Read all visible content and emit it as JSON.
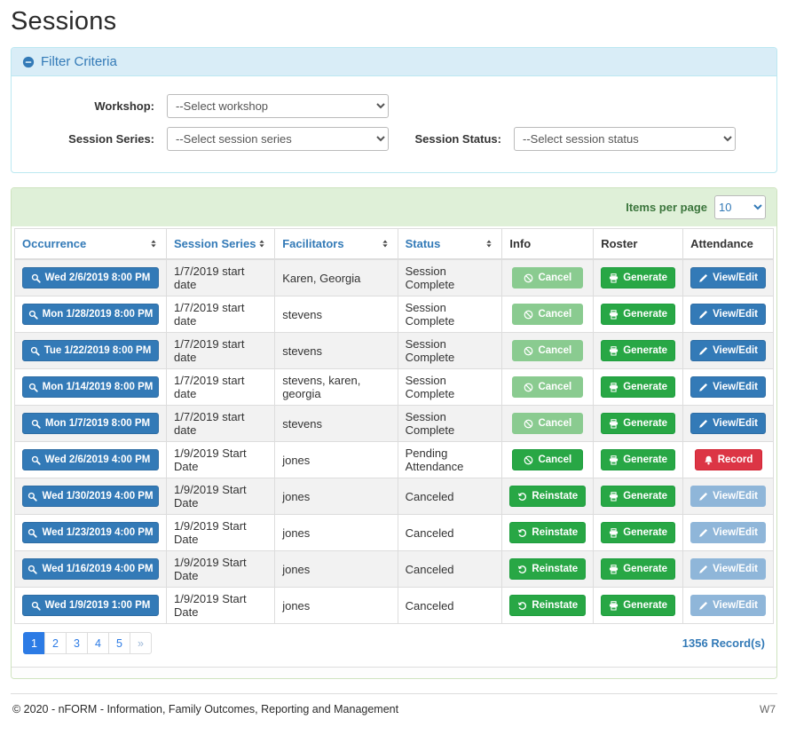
{
  "page": {
    "title": "Sessions"
  },
  "filter": {
    "title": "Filter Criteria",
    "collapse_icon": "minus-circle-icon",
    "workshop": {
      "label": "Workshop:",
      "value": "--Select workshop"
    },
    "session_series": {
      "label": "Session Series:",
      "value": "--Select session series"
    },
    "session_status": {
      "label": "Session Status:",
      "value": "--Select session status"
    }
  },
  "table": {
    "items_per_page": {
      "label": "Items per page",
      "value": "10"
    },
    "columns": [
      {
        "label": "Occurrence",
        "sortable": true
      },
      {
        "label": "Session Series",
        "sortable": true
      },
      {
        "label": "Facilitators",
        "sortable": true
      },
      {
        "label": "Status",
        "sortable": true
      },
      {
        "label": "Info",
        "sortable": false
      },
      {
        "label": "Roster",
        "sortable": false
      },
      {
        "label": "Attendance",
        "sortable": false
      }
    ],
    "rows": [
      {
        "occurrence": "Wed 2/6/2019 8:00 PM",
        "series": "1/7/2019 start date",
        "facilitators": "Karen, Georgia",
        "status": "Session Complete",
        "info": {
          "label": "Cancel",
          "icon": "ban",
          "variant": "green-muted"
        },
        "roster": {
          "label": "Generate",
          "icon": "printer",
          "variant": "green"
        },
        "attendance": {
          "label": "View/Edit",
          "icon": "pencil",
          "variant": "blue"
        }
      },
      {
        "occurrence": "Mon 1/28/2019 8:00 PM",
        "series": "1/7/2019 start date",
        "facilitators": "stevens",
        "status": "Session Complete",
        "info": {
          "label": "Cancel",
          "icon": "ban",
          "variant": "green-muted"
        },
        "roster": {
          "label": "Generate",
          "icon": "printer",
          "variant": "green"
        },
        "attendance": {
          "label": "View/Edit",
          "icon": "pencil",
          "variant": "blue"
        }
      },
      {
        "occurrence": "Tue 1/22/2019 8:00 PM",
        "series": "1/7/2019 start date",
        "facilitators": "stevens",
        "status": "Session Complete",
        "info": {
          "label": "Cancel",
          "icon": "ban",
          "variant": "green-muted"
        },
        "roster": {
          "label": "Generate",
          "icon": "printer",
          "variant": "green"
        },
        "attendance": {
          "label": "View/Edit",
          "icon": "pencil",
          "variant": "blue"
        }
      },
      {
        "occurrence": "Mon 1/14/2019 8:00 PM",
        "series": "1/7/2019 start date",
        "facilitators": "stevens, karen, georgia",
        "status": "Session Complete",
        "info": {
          "label": "Cancel",
          "icon": "ban",
          "variant": "green-muted"
        },
        "roster": {
          "label": "Generate",
          "icon": "printer",
          "variant": "green"
        },
        "attendance": {
          "label": "View/Edit",
          "icon": "pencil",
          "variant": "blue"
        }
      },
      {
        "occurrence": "Mon 1/7/2019 8:00 PM",
        "series": "1/7/2019 start date",
        "facilitators": "stevens",
        "status": "Session Complete",
        "info": {
          "label": "Cancel",
          "icon": "ban",
          "variant": "green-muted"
        },
        "roster": {
          "label": "Generate",
          "icon": "printer",
          "variant": "green"
        },
        "attendance": {
          "label": "View/Edit",
          "icon": "pencil",
          "variant": "blue"
        }
      },
      {
        "occurrence": "Wed 2/6/2019 4:00 PM",
        "series": "1/9/2019 Start Date",
        "facilitators": "jones",
        "status": "Pending Attendance",
        "info": {
          "label": "Cancel",
          "icon": "ban",
          "variant": "green"
        },
        "roster": {
          "label": "Generate",
          "icon": "printer",
          "variant": "green"
        },
        "attendance": {
          "label": "Record",
          "icon": "bell",
          "variant": "red"
        }
      },
      {
        "occurrence": "Wed 1/30/2019 4:00 PM",
        "series": "1/9/2019 Start Date",
        "facilitators": "jones",
        "status": "Canceled",
        "info": {
          "label": "Reinstate",
          "icon": "undo",
          "variant": "green"
        },
        "roster": {
          "label": "Generate",
          "icon": "printer",
          "variant": "green"
        },
        "attendance": {
          "label": "View/Edit",
          "icon": "pencil",
          "variant": "blue-muted"
        }
      },
      {
        "occurrence": "Wed 1/23/2019 4:00 PM",
        "series": "1/9/2019 Start Date",
        "facilitators": "jones",
        "status": "Canceled",
        "info": {
          "label": "Reinstate",
          "icon": "undo",
          "variant": "green"
        },
        "roster": {
          "label": "Generate",
          "icon": "printer",
          "variant": "green"
        },
        "attendance": {
          "label": "View/Edit",
          "icon": "pencil",
          "variant": "blue-muted"
        }
      },
      {
        "occurrence": "Wed 1/16/2019 4:00 PM",
        "series": "1/9/2019 Start Date",
        "facilitators": "jones",
        "status": "Canceled",
        "info": {
          "label": "Reinstate",
          "icon": "undo",
          "variant": "green"
        },
        "roster": {
          "label": "Generate",
          "icon": "printer",
          "variant": "green"
        },
        "attendance": {
          "label": "View/Edit",
          "icon": "pencil",
          "variant": "blue-muted"
        }
      },
      {
        "occurrence": "Wed 1/9/2019 1:00 PM",
        "series": "1/9/2019 Start Date",
        "facilitators": "jones",
        "status": "Canceled",
        "info": {
          "label": "Reinstate",
          "icon": "undo",
          "variant": "green"
        },
        "roster": {
          "label": "Generate",
          "icon": "printer",
          "variant": "green"
        },
        "attendance": {
          "label": "View/Edit",
          "icon": "pencil",
          "variant": "blue-muted"
        }
      }
    ],
    "pagination": {
      "pages": [
        "1",
        "2",
        "3",
        "4",
        "5",
        "»"
      ],
      "active": "1"
    },
    "records_label": "1356 Record(s)"
  },
  "footer": {
    "copyright": "© 2020 - nFORM - Information, Family Outcomes, Reporting and Management",
    "environment": "W7"
  },
  "colors": {
    "primary_blue": "#337ab7",
    "success_green": "#28a745",
    "muted_green": "#8acb90",
    "muted_blue": "#8fb6d9",
    "danger_red": "#dc3545",
    "filter_heading_bg": "#d9edf7",
    "table_heading_bg": "#dff0d8"
  }
}
